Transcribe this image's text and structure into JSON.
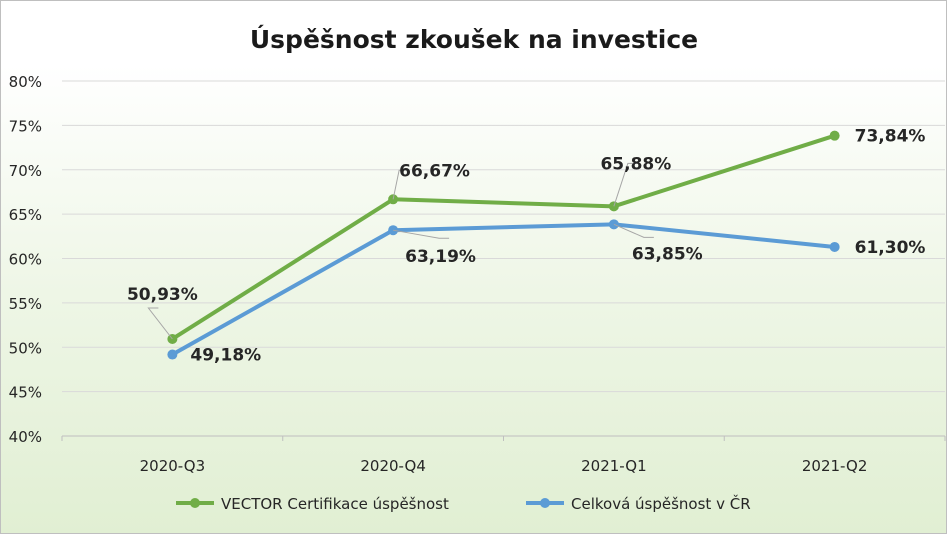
{
  "chart_data": {
    "type": "line",
    "title": "Úspěšnost zkoušek na investice",
    "categories": [
      "2020-Q3",
      "2020-Q4",
      "2021-Q1",
      "2021-Q2"
    ],
    "ylim": [
      40,
      80
    ],
    "yticks": [
      "40%",
      "45%",
      "50%",
      "55%",
      "60%",
      "65%",
      "70%",
      "75%",
      "80%"
    ],
    "ytick_values": [
      40,
      45,
      50,
      55,
      60,
      65,
      70,
      75,
      80
    ],
    "grid": true,
    "legend_position": "bottom",
    "series": [
      {
        "name": "VECTOR Certifikace úspěšnost",
        "color": "#70ad47",
        "values": [
          50.93,
          66.67,
          65.88,
          73.84
        ],
        "labels": [
          "50,93%",
          "66,67%",
          "65,88%",
          "73,84%"
        ]
      },
      {
        "name": "Celková úspěšnost v ČR",
        "color": "#5b9bd5",
        "values": [
          49.18,
          63.19,
          63.85,
          61.3
        ],
        "labels": [
          "49,18%",
          "63,19%",
          "63,85%",
          "61,30%"
        ]
      }
    ]
  }
}
